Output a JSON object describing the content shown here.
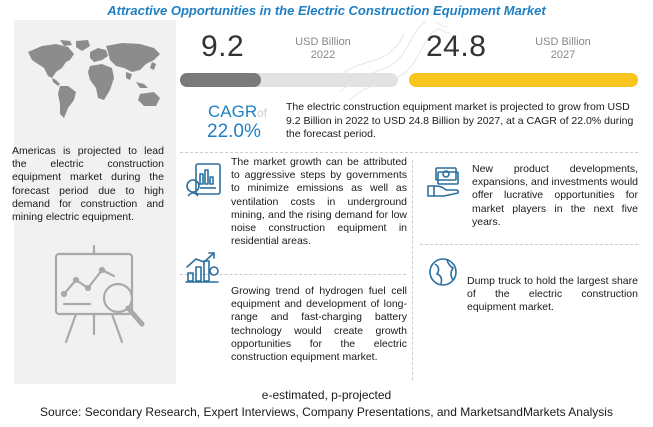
{
  "title": "Attractive Opportunities in the Electric Construction Equipment Market",
  "left_panel": {
    "text": "Americas is projected to lead the electric construction equipment market during the forecast period due to high demand for construction and mining electric equipment."
  },
  "market_2022": {
    "value": "9.2",
    "unit": "USD Billion",
    "year": "2022",
    "fill": 0.37
  },
  "market_2027": {
    "value": "24.8",
    "unit": "USD Billion",
    "year": "2027",
    "fill": 1.0
  },
  "cagr": {
    "label": "CAGR",
    "of": "of",
    "value": "22.0%"
  },
  "projection": "The electric construction equipment market is projected to grow from USD 9.2 Billion in 2022 to USD 24.8 Billion by 2027, at a CAGR of 22.0% during the forecast period.",
  "insights": [
    {
      "text": "The market growth can be attributed to aggressive steps by governments to minimize emissions as well as ventilation costs in underground mining, and the rising demand for low noise construction equipment in residential areas.",
      "icon": "chart-document-icon"
    },
    {
      "text": "Growing trend of hydrogen fuel cell equipment and development of long-range and fast-charging battery technology would create growth opportunities for the electric construction equipment market.",
      "icon": "growth-chart-icon"
    },
    {
      "text": "New product developments, expansions, and investments would offer lucrative opportunities for market players in the next five years.",
      "icon": "money-hand-icon"
    },
    {
      "text": "Dump truck to hold the largest share of the electric construction equipment market.",
      "icon": "globe-icon"
    }
  ],
  "colors": {
    "accent": "#1f7fc3",
    "bar_2022": "#7a7a7a",
    "bar_2027": "#f7c51d",
    "title": "#1f7fc3"
  },
  "footnote": "e-estimated, p-projected",
  "source": "Source: Secondary Research, Expert Interviews, Company Presentations, and MarketsandMarkets Analysis"
}
